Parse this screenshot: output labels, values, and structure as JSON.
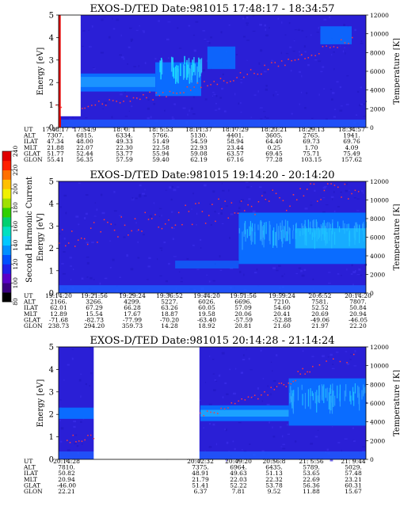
{
  "chart_data": [
    {
      "type": "heatmap",
      "title": "EXOS-D/TED   Date:981015   17:48:17 - 18:34:57",
      "ylabel": "Energy [eV]",
      "y2label": "Temperature [K]",
      "ylim": [
        0,
        5
      ],
      "y2lim": [
        0,
        12000
      ],
      "yticks": [
        "0",
        "1",
        "2",
        "3",
        "4",
        "5"
      ],
      "y2ticks": [
        "0",
        "2000",
        "4000",
        "6000",
        "8000",
        "10000",
        "12000"
      ],
      "rows": [
        "UT",
        "ALT",
        "ILAT",
        "MLT",
        "GLAT",
        "GLON"
      ],
      "columns": [
        [
          "17:48:17",
          "7307.",
          "47.34",
          "21.88",
          "51.77",
          "55.41"
        ],
        [
          "17:54:9",
          "6815.",
          "48.00",
          "22.07",
          "52.44",
          "56.35"
        ],
        [
          "18: 0: 1",
          "6334.",
          "49.33",
          "22.30",
          "53.77",
          "57.59"
        ],
        [
          "18: 5:53",
          "5766.",
          "51.49",
          "22.58",
          "55.94",
          "59.40"
        ],
        [
          "18:11:37",
          "5130.",
          "54.59",
          "22.93",
          "59.08",
          "62.19"
        ],
        [
          "18:17:29",
          "4401.",
          "58.94",
          "23.44",
          "63.57",
          "67.16"
        ],
        [
          "18:23:21",
          "3605.",
          "64.40",
          "0.25",
          "69.45",
          "77.28"
        ],
        [
          "18:29:13",
          "2765.",
          "69.73",
          "1.70",
          "75.71",
          "103.15"
        ],
        [
          "18:34:57",
          "1941.",
          "69.76",
          "4.09",
          "75.49",
          "157.62"
        ]
      ],
      "features": {
        "data_gap_ut": [
          "17:49",
          "17:53"
        ],
        "band_energy_ev": [
          1.6,
          2.4
        ],
        "enhanced_ut": [
          "18:05",
          "18:12"
        ],
        "temperature_k_range": [
          2400,
          9500
        ]
      }
    },
    {
      "type": "heatmap",
      "title": "EXOS-D/TED   Date:981015   19:14:20 - 20:14:20",
      "ylabel": "Energy [eV]",
      "y2label": "Temperature [K]",
      "ylim": [
        0,
        5
      ],
      "y2lim": [
        0,
        12000
      ],
      "yticks": [
        "0",
        "1",
        "2",
        "3",
        "4",
        "5"
      ],
      "y2ticks": [
        "0",
        "2000",
        "4000",
        "6000",
        "8000",
        "10000",
        "12000"
      ],
      "rows": [
        "UT",
        "ALT",
        "ILAT",
        "MLT",
        "GLAT",
        "GLON"
      ],
      "columns": [
        [
          "19:14:20",
          "2166.",
          "62.01",
          "12.89",
          "-71.68",
          "238.73"
        ],
        [
          "19:21:56",
          "3266.",
          "67.29",
          "15.54",
          "-82.73",
          "294.20"
        ],
        [
          "19:29:24",
          "4299.",
          "66.28",
          "17.67",
          "-77.99",
          "359.73"
        ],
        [
          "19:36:52",
          "5227.",
          "63.26",
          "18.87",
          "-70.20",
          "14.28"
        ],
        [
          "19:44:20",
          "6026.",
          "60.05",
          "19.58",
          "-63.40",
          "18.92"
        ],
        [
          "19:51:56",
          "6696.",
          "57.09",
          "20.06",
          "-57.59",
          "20.81"
        ],
        [
          "19:59:24",
          "7210.",
          "54.60",
          "20.41",
          "-52.88",
          "21.60"
        ],
        [
          "20:6:52",
          "7581.",
          "52.52",
          "20.69",
          "-49.06",
          "21.97"
        ],
        [
          "20:14:20",
          "7807.",
          "50.84",
          "20.94",
          "-46.05",
          "22.20"
        ]
      ],
      "features": {
        "band_energy_ev": [
          1.3,
          3.6
        ],
        "enhanced_ut": [
          "19:51",
          "20:14"
        ],
        "temperature_k_range": [
          3500,
          11500
        ]
      }
    },
    {
      "type": "heatmap",
      "title": "EXOS-D/TED   Date:981015   20:14:28 - 21:14:24",
      "ylabel": "Energy [eV]",
      "y2label": "Temperature [K]",
      "ylim": [
        0,
        5
      ],
      "y2lim": [
        0,
        12000
      ],
      "yticks": [
        "0",
        "1",
        "2",
        "3",
        "4",
        "5"
      ],
      "y2ticks": [
        "0",
        "2000",
        "4000",
        "6000",
        "8000",
        "10000",
        "12000"
      ],
      "rows": [
        "UT",
        "ALT",
        "ILAT",
        "MLT",
        "GLAT",
        "GLON"
      ],
      "columns": [
        [
          "20:14:28",
          "7810.",
          "50.82",
          "20.94",
          "-46.00",
          "22.21"
        ],
        [
          "20:42:32",
          "7375.",
          "48.91",
          "21.79",
          "51.41",
          "6.37"
        ],
        [
          "20:49:20",
          "6964.",
          "49.63",
          "22.03",
          "52.22",
          "7.81"
        ],
        [
          "20:56:8",
          "6435.",
          "51.13",
          "22.32",
          "53.78",
          "9.52"
        ],
        [
          "21: 5:56",
          "5789.",
          "53.65",
          "22.69",
          "56.36",
          "11.88"
        ],
        [
          "21: 9:44",
          "5029.",
          "57.48",
          "23.21",
          "60.31",
          "15.67"
        ]
      ],
      "features": {
        "data_gap_ut": [
          "20:20",
          "20:40"
        ],
        "band_energy_ev": [
          1.7,
          2.4
        ],
        "temperature_k_range": [
          2300,
          11000
        ]
      }
    }
  ],
  "colorbar": {
    "label": "Second Harmonic Current",
    "ticks": [
      "80",
      "100",
      "120",
      "140",
      "160",
      "180",
      "200",
      "220",
      "240"
    ],
    "colors": [
      "#000000",
      "#3a0080",
      "#5a00c8",
      "#2020e8",
      "#0050ff",
      "#0090ff",
      "#00c8ff",
      "#00e0c0",
      "#00d070",
      "#30d000",
      "#a0e000",
      "#f0f000",
      "#ffc000",
      "#ff7000",
      "#ff2000",
      "#e00000"
    ]
  }
}
